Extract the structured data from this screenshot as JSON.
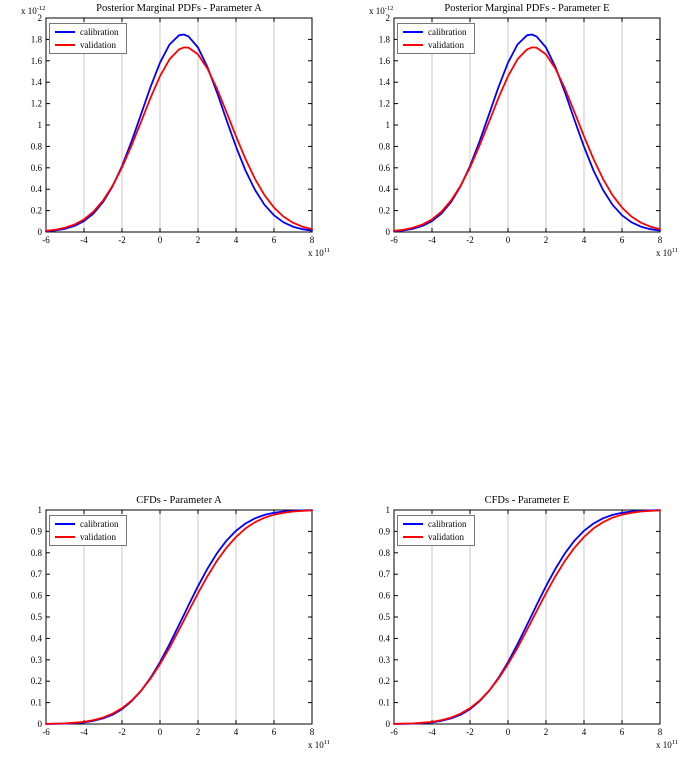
{
  "window": {
    "background": "#ffffff"
  },
  "colors": {
    "grid": "#c9c9c9",
    "axis": "#000000",
    "calibration": "#0000ff",
    "validation": "#ff0000"
  },
  "legend": {
    "items": [
      {
        "label": "calibration",
        "color": "#0000ff"
      },
      {
        "label": "validation",
        "color": "#ff0000"
      }
    ]
  },
  "chart_data": [
    {
      "type": "line",
      "title": "Posterior Marginal PDFs - Parameter A",
      "xlim": [
        -6,
        8
      ],
      "ylim": [
        0,
        2
      ],
      "xticks": [
        -6,
        -4,
        -2,
        0,
        2,
        4,
        6,
        8
      ],
      "xtick_labels": [
        "-6",
        "-4",
        "-2",
        "0",
        "2",
        "4",
        "6",
        "8"
      ],
      "yticks": [
        0,
        0.2,
        0.4,
        0.6,
        0.8,
        1,
        1.2,
        1.4,
        1.6,
        1.8,
        2
      ],
      "ytick_labels": [
        "0",
        "0.2",
        "0.4",
        "0.6",
        "0.8",
        "1",
        "1.2",
        "1.4",
        "1.6",
        "1.8",
        "2"
      ],
      "x_scale_label": {
        "base": "x 10",
        "exp": "11"
      },
      "y_scale_label": {
        "base": "x 10",
        "exp": "-12"
      },
      "grid": "vertical",
      "legend_position": "top-left",
      "x": [
        -6,
        -5.5,
        -5,
        -4.5,
        -4,
        -3.5,
        -3,
        -2.5,
        -2,
        -1.5,
        -1,
        -0.5,
        0,
        0.5,
        1,
        1.25,
        1.5,
        2,
        2.5,
        3,
        3.5,
        4,
        4.5,
        5,
        5.5,
        6,
        6.5,
        7,
        7.5,
        8
      ],
      "series": [
        {
          "name": "calibration",
          "color": "#0000ff",
          "values": [
            0.007,
            0.015,
            0.03,
            0.057,
            0.102,
            0.173,
            0.279,
            0.426,
            0.616,
            0.845,
            1.099,
            1.354,
            1.582,
            1.752,
            1.838,
            1.846,
            1.828,
            1.724,
            1.54,
            1.304,
            1.047,
            0.797,
            0.575,
            0.393,
            0.254,
            0.156,
            0.091,
            0.05,
            0.026,
            0.013
          ]
        },
        {
          "name": "validation",
          "color": "#ff0000",
          "values": [
            0.011,
            0.021,
            0.04,
            0.07,
            0.118,
            0.191,
            0.293,
            0.431,
            0.603,
            0.807,
            1.029,
            1.253,
            1.456,
            1.614,
            1.707,
            1.725,
            1.723,
            1.66,
            1.526,
            1.338,
            1.12,
            0.894,
            0.682,
            0.496,
            0.344,
            0.228,
            0.144,
            0.087,
            0.05,
            0.027
          ]
        }
      ]
    },
    {
      "type": "line",
      "title": "Posterior Marginal PDFs - Parameter E",
      "xlim": [
        -6,
        8
      ],
      "ylim": [
        0,
        2
      ],
      "xticks": [
        -6,
        -4,
        -2,
        0,
        2,
        4,
        6,
        8
      ],
      "xtick_labels": [
        "-6",
        "-4",
        "-2",
        "0",
        "2",
        "4",
        "6",
        "8"
      ],
      "yticks": [
        0,
        0.2,
        0.4,
        0.6,
        0.8,
        1,
        1.2,
        1.4,
        1.6,
        1.8,
        2
      ],
      "ytick_labels": [
        "0",
        "0.2",
        "0.4",
        "0.6",
        "0.8",
        "1",
        "1.2",
        "1.4",
        "1.6",
        "1.8",
        "2"
      ],
      "x_scale_label": {
        "base": "x 10",
        "exp": "11"
      },
      "y_scale_label": {
        "base": "x 10",
        "exp": "-12"
      },
      "grid": "vertical",
      "legend_position": "top-left",
      "x": [
        -6,
        -5.5,
        -5,
        -4.5,
        -4,
        -3.5,
        -3,
        -2.5,
        -2,
        -1.5,
        -1,
        -0.5,
        0,
        0.5,
        1,
        1.25,
        1.5,
        2,
        2.5,
        3,
        3.5,
        4,
        4.5,
        5,
        5.5,
        6,
        6.5,
        7,
        7.5,
        8
      ],
      "series": [
        {
          "name": "calibration",
          "color": "#0000ff",
          "values": [
            0.007,
            0.015,
            0.03,
            0.057,
            0.102,
            0.173,
            0.279,
            0.426,
            0.616,
            0.845,
            1.099,
            1.354,
            1.582,
            1.752,
            1.838,
            1.846,
            1.828,
            1.724,
            1.54,
            1.304,
            1.047,
            0.797,
            0.575,
            0.393,
            0.254,
            0.156,
            0.091,
            0.05,
            0.026,
            0.013
          ]
        },
        {
          "name": "validation",
          "color": "#ff0000",
          "values": [
            0.011,
            0.021,
            0.04,
            0.07,
            0.118,
            0.191,
            0.293,
            0.431,
            0.603,
            0.807,
            1.029,
            1.253,
            1.456,
            1.614,
            1.707,
            1.725,
            1.723,
            1.66,
            1.526,
            1.338,
            1.12,
            0.894,
            0.682,
            0.496,
            0.344,
            0.228,
            0.144,
            0.087,
            0.05,
            0.027
          ]
        }
      ]
    },
    {
      "type": "line",
      "title": "CFDs - Parameter A",
      "xlim": [
        -6,
        8
      ],
      "ylim": [
        0,
        1
      ],
      "xticks": [
        -6,
        -4,
        -2,
        0,
        2,
        4,
        6,
        8
      ],
      "xtick_labels": [
        "-6",
        "-4",
        "-2",
        "0",
        "2",
        "4",
        "6",
        "8"
      ],
      "yticks": [
        0,
        0.1,
        0.2,
        0.3,
        0.4,
        0.5,
        0.6,
        0.7,
        0.8,
        0.9,
        1
      ],
      "ytick_labels": [
        "0",
        "0.1",
        "0.2",
        "0.3",
        "0.4",
        "0.5",
        "0.6",
        "0.7",
        "0.8",
        "0.9",
        "1"
      ],
      "x_scale_label": {
        "base": "x 10",
        "exp": "11"
      },
      "grid": "vertical",
      "legend_position": "top-left",
      "x": [
        -6,
        -5.5,
        -5,
        -4.5,
        -4,
        -3.5,
        -3,
        -2.5,
        -2,
        -1.5,
        -1,
        -0.5,
        0,
        0.5,
        1,
        1.25,
        1.5,
        2,
        2.5,
        3,
        3.5,
        4,
        4.5,
        5,
        5.5,
        6,
        6.5,
        7,
        7.5,
        8
      ],
      "series": [
        {
          "name": "calibration",
          "color": "#0000ff",
          "values": [
            0.0,
            0.001,
            0.002,
            0.004,
            0.008,
            0.015,
            0.026,
            0.043,
            0.069,
            0.106,
            0.154,
            0.216,
            0.289,
            0.373,
            0.463,
            0.509,
            0.555,
            0.644,
            0.726,
            0.798,
            0.857,
            0.903,
            0.937,
            0.961,
            0.977,
            0.987,
            0.993,
            0.996,
            0.998,
            0.999
          ]
        },
        {
          "name": "validation",
          "color": "#ff0000",
          "values": [
            0.001,
            0.002,
            0.003,
            0.006,
            0.01,
            0.018,
            0.03,
            0.048,
            0.074,
            0.109,
            0.155,
            0.212,
            0.28,
            0.356,
            0.44,
            0.483,
            0.526,
            0.611,
            0.691,
            0.763,
            0.824,
            0.874,
            0.914,
            0.943,
            0.964,
            0.978,
            0.987,
            0.993,
            0.996,
            0.998
          ]
        }
      ]
    },
    {
      "type": "line",
      "title": "CFDs - Parameter E",
      "xlim": [
        -6,
        8
      ],
      "ylim": [
        0,
        1
      ],
      "xticks": [
        -6,
        -4,
        -2,
        0,
        2,
        4,
        6,
        8
      ],
      "xtick_labels": [
        "-6",
        "-4",
        "-2",
        "0",
        "2",
        "4",
        "6",
        "8"
      ],
      "yticks": [
        0,
        0.1,
        0.2,
        0.3,
        0.4,
        0.5,
        0.6,
        0.7,
        0.8,
        0.9,
        1
      ],
      "ytick_labels": [
        "0",
        "0.1",
        "0.2",
        "0.3",
        "0.4",
        "0.5",
        "0.6",
        "0.7",
        "0.8",
        "0.9",
        "1"
      ],
      "x_scale_label": {
        "base": "x 10",
        "exp": "11"
      },
      "grid": "vertical",
      "legend_position": "top-left",
      "x": [
        -6,
        -5.5,
        -5,
        -4.5,
        -4,
        -3.5,
        -3,
        -2.5,
        -2,
        -1.5,
        -1,
        -0.5,
        0,
        0.5,
        1,
        1.25,
        1.5,
        2,
        2.5,
        3,
        3.5,
        4,
        4.5,
        5,
        5.5,
        6,
        6.5,
        7,
        7.5,
        8
      ],
      "series": [
        {
          "name": "calibration",
          "color": "#0000ff",
          "values": [
            0.0,
            0.001,
            0.002,
            0.004,
            0.008,
            0.015,
            0.026,
            0.043,
            0.069,
            0.106,
            0.154,
            0.216,
            0.289,
            0.373,
            0.463,
            0.509,
            0.555,
            0.644,
            0.726,
            0.798,
            0.857,
            0.903,
            0.937,
            0.961,
            0.977,
            0.987,
            0.993,
            0.996,
            0.998,
            0.999
          ]
        },
        {
          "name": "validation",
          "color": "#ff0000",
          "values": [
            0.001,
            0.002,
            0.003,
            0.006,
            0.01,
            0.018,
            0.03,
            0.048,
            0.074,
            0.109,
            0.155,
            0.212,
            0.28,
            0.356,
            0.44,
            0.483,
            0.526,
            0.611,
            0.691,
            0.763,
            0.824,
            0.874,
            0.914,
            0.943,
            0.964,
            0.978,
            0.987,
            0.993,
            0.996,
            0.998
          ]
        }
      ]
    }
  ]
}
